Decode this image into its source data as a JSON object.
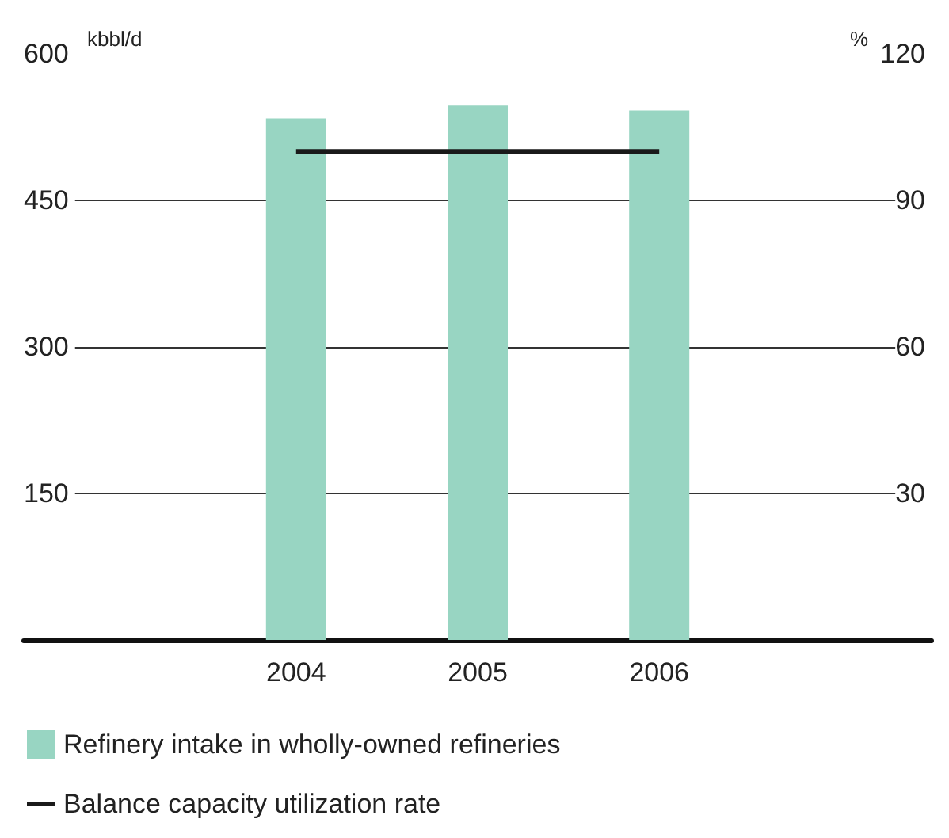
{
  "chart_data": {
    "type": "bar",
    "categories": [
      null,
      "2004",
      "2005",
      "2006",
      null
    ],
    "series": [
      {
        "name": "Refinery intake in wholly-owned refineries",
        "color": "#98d5c2",
        "values": [
          null,
          534,
          547,
          542,
          null
        ]
      },
      {
        "name": "Balance capacity utilization rate",
        "type": "line",
        "axis": "y2",
        "color": "#1a1a1a",
        "values": [
          null,
          100,
          100,
          100,
          null
        ]
      }
    ],
    "ylabel": "kbbl/d",
    "y2label": "%",
    "ylim": [
      0,
      600
    ],
    "yticks": [
      150,
      300,
      450,
      600
    ],
    "y2lim": [
      0,
      120
    ],
    "y2ticks": [
      30,
      60,
      90,
      120
    ],
    "grid": "y",
    "legend": "bottom left",
    "marker": "none"
  }
}
